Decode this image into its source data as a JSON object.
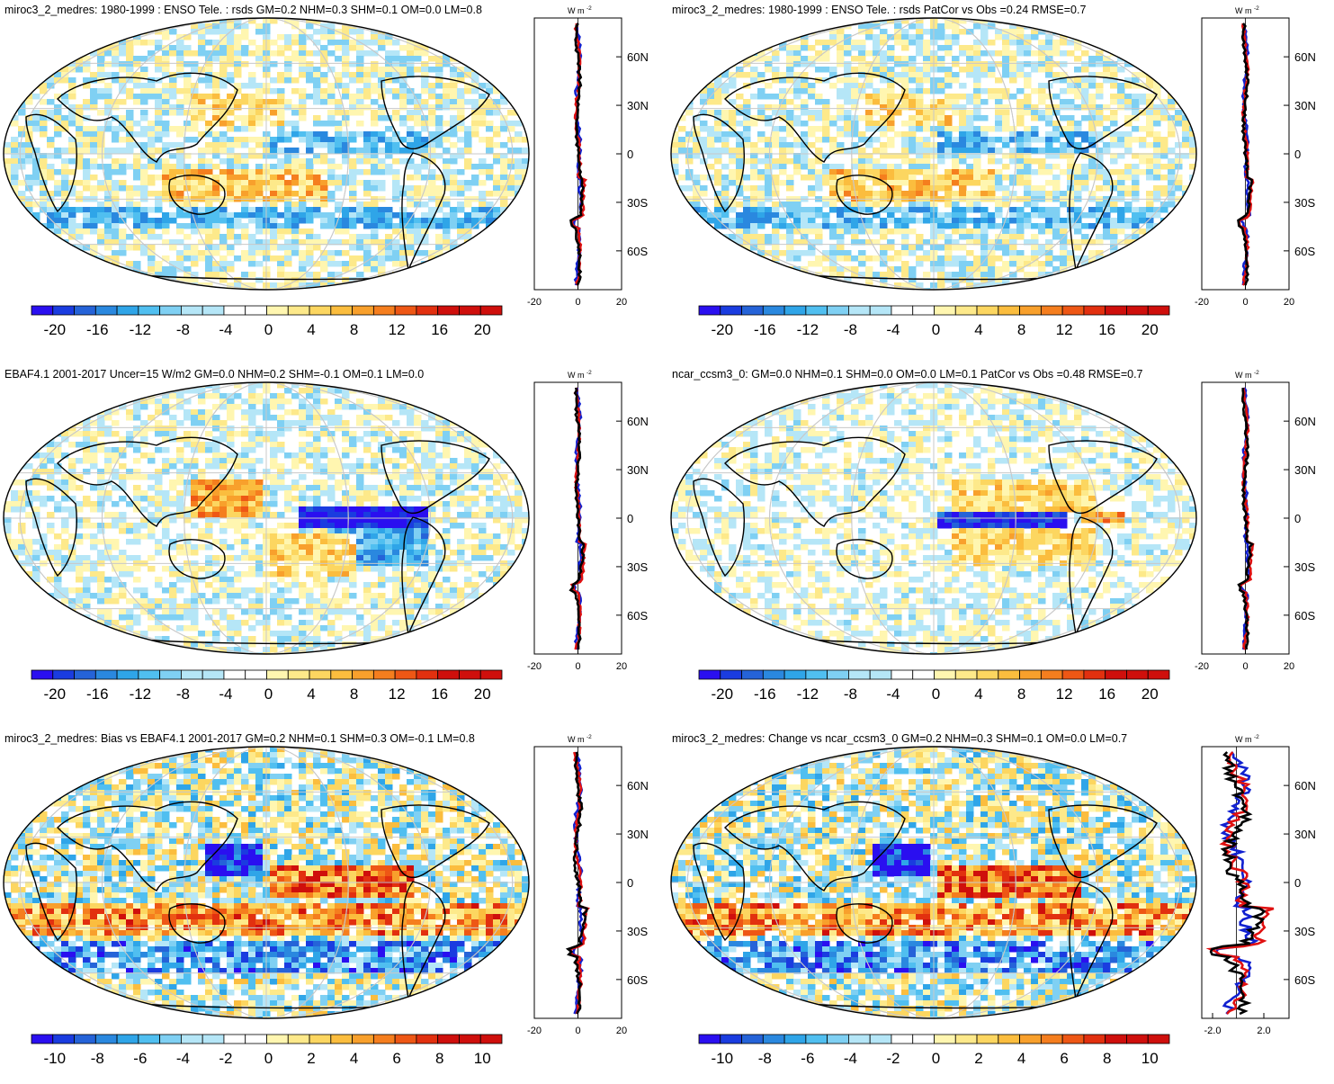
{
  "colors": {
    "blues": [
      "#2a0ff0",
      "#1a3ce0",
      "#2563d8",
      "#2a88df",
      "#2fa5e8",
      "#50bff0",
      "#7fd0f3",
      "#b5e6f7"
    ],
    "reds": [
      "#fff6b0",
      "#fde98a",
      "#fcd660",
      "#fbbd3e",
      "#f8a02c",
      "#f57e1e",
      "#ee5715",
      "#e2300f",
      "#cf0f0c"
    ],
    "model_line": "#e01010",
    "obs_line": "#1020d0",
    "diff_line": "#000000",
    "grid": "#c8c8c8"
  },
  "panels": [
    {
      "title": "miroc3_2_medres: 1980-1999 : ENSO Tele. : rsds GM=0.2 NHM=0.3 SHM=0.1 OM=0.0 LM=0.8",
      "colorbar_labels": [
        "-20",
        "-16",
        "-12",
        "-8",
        "-4",
        "0",
        "4",
        "8",
        "12",
        "16",
        "20"
      ],
      "profile": {
        "units_label": "W m",
        "units_sup": "-2",
        "x_ticks": [
          "-20",
          "0",
          "20"
        ],
        "y_ticks": [
          "60N",
          "30N",
          "0",
          "30S",
          "60S"
        ]
      }
    },
    {
      "title": "miroc3_2_medres: 1980-1999 : ENSO Tele. : rsds PatCor vs Obs =0.24 RMSE=0.7",
      "colorbar_labels": [
        "-20",
        "-16",
        "-12",
        "-8",
        "-4",
        "0",
        "4",
        "8",
        "12",
        "16",
        "20"
      ],
      "profile": {
        "units_label": "W m",
        "units_sup": "-2",
        "x_ticks": [
          "-20",
          "0",
          "20"
        ],
        "y_ticks": [
          "60N",
          "30N",
          "0",
          "30S",
          "60S"
        ]
      }
    },
    {
      "title": "EBAF4.1 2001-2017 Uncer=15 W/m2 GM=0.0 NHM=0.2 SHM=-0.1 OM=0.1 LM=0.0",
      "colorbar_labels": [
        "-20",
        "-16",
        "-12",
        "-8",
        "-4",
        "0",
        "4",
        "8",
        "12",
        "16",
        "20"
      ],
      "profile": {
        "units_label": "W m",
        "units_sup": "-2",
        "x_ticks": [
          "-20",
          "0",
          "20"
        ],
        "y_ticks": [
          "60N",
          "30N",
          "0",
          "30S",
          "60S"
        ]
      }
    },
    {
      "title": "ncar_ccsm3_0: GM=0.0 NHM=0.1 SHM=0.0 OM=0.0 LM=0.1 PatCor vs Obs =0.48 RMSE=0.7",
      "colorbar_labels": [
        "-20",
        "-16",
        "-12",
        "-8",
        "-4",
        "0",
        "4",
        "8",
        "12",
        "16",
        "20"
      ],
      "profile": {
        "units_label": "W m",
        "units_sup": "-2",
        "x_ticks": [
          "-20",
          "0",
          "20"
        ],
        "y_ticks": [
          "60N",
          "30N",
          "0",
          "30S",
          "60S"
        ]
      }
    },
    {
      "title": "miroc3_2_medres: Bias vs EBAF4.1 2001-2017 GM=0.2 NHM=0.1 SHM=0.3 OM=-0.1 LM=0.8",
      "colorbar_labels": [
        "-10",
        "-8",
        "-6",
        "-4",
        "-2",
        "0",
        "2",
        "4",
        "6",
        "8",
        "10"
      ],
      "profile": {
        "units_label": "W m",
        "units_sup": "-2",
        "x_ticks": [
          "-20",
          "0",
          "20"
        ],
        "y_ticks": [
          "60N",
          "30N",
          "0",
          "30S",
          "60S"
        ]
      }
    },
    {
      "title": "miroc3_2_medres: Change vs ncar_ccsm3_0 GM=0.2 NHM=0.3 SHM=0.1 OM=0.0 LM=0.7",
      "colorbar_labels": [
        "-10",
        "-8",
        "-6",
        "-4",
        "-2",
        "0",
        "2",
        "4",
        "6",
        "8",
        "10"
      ],
      "profile": {
        "units_label": "W m",
        "units_sup": "-2",
        "x_ticks": [
          "-2.0",
          "2.0"
        ],
        "y_ticks": [
          "60N",
          "30N",
          "0",
          "30S",
          "60S"
        ]
      }
    }
  ]
}
